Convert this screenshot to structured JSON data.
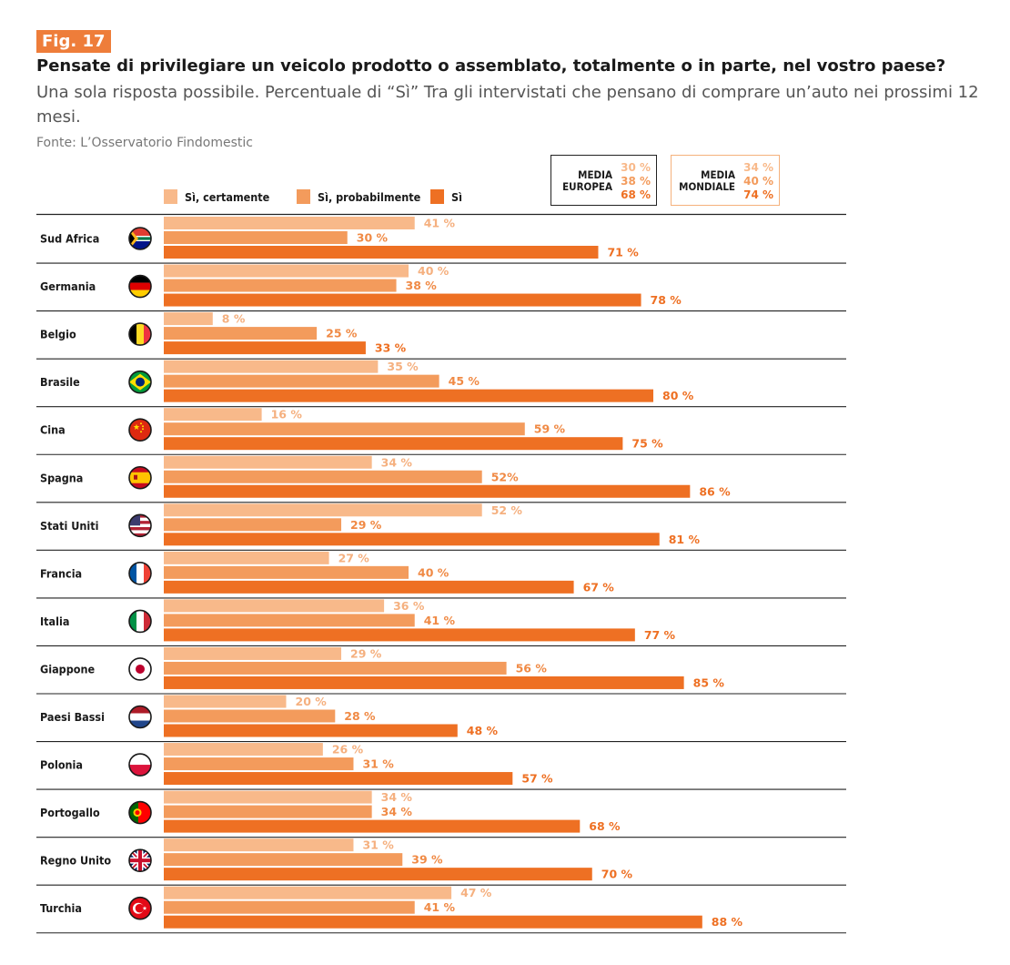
{
  "header": {
    "fig_label": "Fig. 17",
    "title": "Pensate di privilegiare un veicolo prodotto o assemblato, totalmente o in parte, nel vostro paese?",
    "subtitle": "Una sola risposta possibile. Percentuale di “Sì” Tra gli intervistati che pensano di comprare un’auto nei prossimi 12 mesi.",
    "source": "Fonte: L’Osservatorio Findomestic"
  },
  "colors": {
    "certamente": "#f8b98a",
    "probabilmente": "#f39b5c",
    "si": "#ee7023",
    "rule": "#222222"
  },
  "summary": {
    "europe": {
      "label_line1": "MEDIA",
      "label_line2": "EUROPEA",
      "values": [
        "30 %",
        "38 %",
        "68 %"
      ]
    },
    "world": {
      "label_line1": "MEDIA",
      "label_line2": "MONDIALE",
      "values": [
        "34 %",
        "40 %",
        "74 %"
      ]
    }
  },
  "chart_data": {
    "type": "bar",
    "orientation": "horizontal",
    "legend": [
      "Sì, certamente",
      "Sì, probabilmente",
      "Sì"
    ],
    "categories": [
      "Sud Africa",
      "Germania",
      "Belgio",
      "Brasile",
      "Cina",
      "Spagna",
      "Stati Uniti",
      "Francia",
      "Italia",
      "Giappone",
      "Paesi Bassi",
      "Polonia",
      "Portogallo",
      "Regno Unito",
      "Turchia"
    ],
    "flags": [
      "za",
      "de",
      "be",
      "br",
      "cn",
      "es",
      "us",
      "fr",
      "it",
      "jp",
      "nl",
      "pl",
      "pt",
      "gb",
      "tr"
    ],
    "series": [
      {
        "name": "Sì, certamente",
        "values": [
          41,
          40,
          8,
          35,
          16,
          34,
          52,
          27,
          36,
          29,
          20,
          26,
          34,
          31,
          47
        ],
        "labels": [
          "41 %",
          "40 %",
          "8 %",
          "35 %",
          "16 %",
          "34 %",
          "52 %",
          "27 %",
          "36 %",
          "29 %",
          "20 %",
          "26 %",
          "34 %",
          "31 %",
          "47 %"
        ]
      },
      {
        "name": "Sì, probabilmente",
        "values": [
          30,
          38,
          25,
          45,
          59,
          52,
          29,
          40,
          41,
          56,
          28,
          31,
          34,
          39,
          41
        ],
        "labels": [
          "30 %",
          "38 %",
          "25 %",
          "45 %",
          "59 %",
          "52%",
          "29 %",
          "40 %",
          "41 %",
          "56 %",
          "28 %",
          "31 %",
          "34 %",
          "39 %",
          "41 %"
        ]
      },
      {
        "name": "Sì",
        "values": [
          71,
          78,
          33,
          80,
          75,
          86,
          81,
          67,
          77,
          85,
          48,
          57,
          68,
          70,
          88
        ],
        "labels": [
          "71 %",
          "78 %",
          "33 %",
          "80 %",
          "75 %",
          "86 %",
          "81 %",
          "67 %",
          "77 %",
          "85 %",
          "48 %",
          "57 %",
          "68 %",
          "70 %",
          "88 %"
        ]
      }
    ],
    "xlim": [
      0,
      100
    ]
  }
}
